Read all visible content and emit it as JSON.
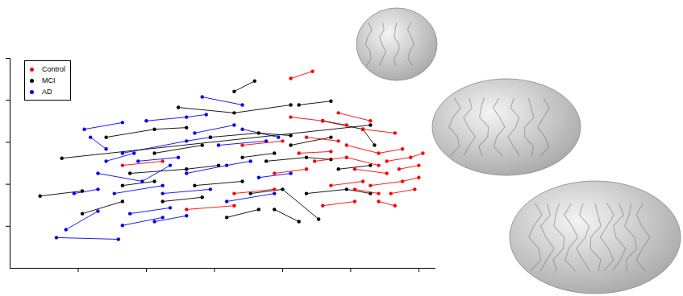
{
  "chart_data": {
    "type": "scatter",
    "tick_labels": false,
    "legend": "upper left",
    "xlim": [
      0,
      6.25
    ],
    "xticks": [
      1,
      2,
      3,
      4,
      5,
      6
    ],
    "ylim": [
      0,
      5
    ],
    "yticks": [
      1,
      2,
      3,
      4,
      5
    ],
    "series": [
      {
        "name": "AD",
        "color": "#0000ff",
        "marker": "circle",
        "line_style": "solid",
        "values": [
          [
            [
              0.68,
              0.73
            ],
            [
              1.59,
              0.69
            ]
          ],
          [
            [
              0.82,
              0.92
            ],
            [
              1.29,
              1.36
            ]
          ],
          [
            [
              1.09,
              3.31
            ],
            [
              1.65,
              3.47
            ]
          ],
          [
            [
              1.18,
              3.12
            ],
            [
              1.41,
              2.84
            ]
          ],
          [
            [
              1.29,
              2.26
            ],
            [
              1.94,
              2.07
            ],
            [
              2.35,
              2.45
            ]
          ],
          [
            [
              1.53,
              1.78
            ],
            [
              2.24,
              1.97
            ]
          ],
          [
            [
              1.65,
              2.74
            ],
            [
              2.59,
              3.03
            ],
            [
              2.94,
              3.12
            ]
          ],
          [
            [
              1.76,
              1.3
            ],
            [
              2.35,
              1.44
            ]
          ],
          [
            [
              1.88,
              2.55
            ],
            [
              2.47,
              2.64
            ]
          ],
          [
            [
              2.0,
              3.51
            ],
            [
              2.59,
              3.6
            ],
            [
              2.88,
              3.66
            ]
          ],
          [
            [
              2.24,
              1.78
            ],
            [
              2.94,
              1.88
            ]
          ],
          [
            [
              2.82,
              4.08
            ],
            [
              3.41,
              3.89
            ]
          ],
          [
            [
              2.59,
              2.26
            ],
            [
              3.18,
              2.45
            ],
            [
              3.53,
              2.55
            ]
          ],
          [
            [
              3.06,
              2.93
            ],
            [
              3.76,
              3.03
            ]
          ],
          [
            [
              3.18,
              1.59
            ],
            [
              3.88,
              1.78
            ]
          ],
          [
            [
              3.41,
              3.31
            ],
            [
              3.94,
              3.12
            ]
          ],
          [
            [
              0.94,
              1.78
            ],
            [
              1.29,
              1.88
            ]
          ],
          [
            [
              1.41,
              2.55
            ],
            [
              1.82,
              2.74
            ]
          ],
          [
            [
              2.12,
              1.11
            ],
            [
              2.59,
              1.25
            ]
          ],
          [
            [
              3.65,
              2.16
            ],
            [
              4.12,
              2.26
            ]
          ],
          [
            [
              1.65,
              1.02
            ],
            [
              2.24,
              1.21
            ]
          ],
          [
            [
              2.71,
              3.22
            ],
            [
              3.29,
              3.41
            ]
          ]
        ]
      },
      {
        "name": "MCI",
        "color": "#000000",
        "marker": "circle",
        "line_style": "solid",
        "values": [
          [
            [
              0.44,
              1.72
            ],
            [
              1.06,
              1.84
            ]
          ],
          [
            [
              0.76,
              2.62
            ],
            [
              5.29,
              3.41
            ]
          ],
          [
            [
              3.29,
              4.21
            ],
            [
              3.59,
              4.46
            ]
          ],
          [
            [
              1.41,
              3.12
            ],
            [
              2.12,
              3.31
            ],
            [
              2.59,
              3.35
            ]
          ],
          [
            [
              1.06,
              1.3
            ],
            [
              1.65,
              1.59
            ]
          ],
          [
            [
              1.76,
              2.26
            ],
            [
              2.59,
              2.36
            ],
            [
              3.06,
              2.45
            ]
          ],
          [
            [
              2.12,
              2.74
            ],
            [
              2.82,
              2.93
            ]
          ],
          [
            [
              2.47,
              3.83
            ],
            [
              3.29,
              3.7
            ],
            [
              4.12,
              3.89
            ]
          ],
          [
            [
              2.71,
              1.97
            ],
            [
              3.41,
              2.07
            ]
          ],
          [
            [
              2.94,
              3.12
            ],
            [
              3.65,
              3.22
            ],
            [
              4.12,
              3.16
            ]
          ],
          [
            [
              3.18,
              1.21
            ],
            [
              3.65,
              1.4
            ]
          ],
          [
            [
              3.76,
              2.55
            ],
            [
              4.35,
              2.64
            ],
            [
              4.71,
              2.59
            ]
          ],
          [
            [
              3.88,
              1.4
            ],
            [
              4.24,
              1.11
            ]
          ],
          [
            [
              4.12,
              2.93
            ],
            [
              4.71,
              3.12
            ]
          ],
          [
            [
              4.35,
              1.78
            ],
            [
              4.94,
              1.88
            ],
            [
              5.29,
              1.78
            ]
          ],
          [
            [
              4.59,
              3.51
            ],
            [
              5.18,
              3.31
            ],
            [
              5.35,
              2.93
            ]
          ],
          [
            [
              4.82,
              2.36
            ],
            [
              5.29,
              2.45
            ]
          ],
          [
            [
              3.41,
              2.64
            ],
            [
              3.88,
              2.74
            ]
          ],
          [
            [
              2.24,
              1.59
            ],
            [
              2.82,
              1.69
            ]
          ],
          [
            [
              3.53,
              1.78
            ],
            [
              4.0,
              1.88
            ],
            [
              4.53,
              1.17
            ]
          ],
          [
            [
              1.65,
              1.97
            ],
            [
              2.12,
              2.07
            ]
          ],
          [
            [
              4.24,
              3.89
            ],
            [
              4.71,
              3.98
            ]
          ]
        ]
      },
      {
        "name": "Control",
        "color": "#ff0000",
        "marker": "circle",
        "line_style": "solid",
        "values": [
          [
            [
              4.12,
              4.52
            ],
            [
              4.44,
              4.69
            ]
          ],
          [
            [
              1.65,
              2.45
            ],
            [
              2.24,
              2.55
            ]
          ],
          [
            [
              3.29,
              1.78
            ],
            [
              3.88,
              1.88
            ]
          ],
          [
            [
              4.12,
              3.6
            ],
            [
              4.59,
              3.51
            ],
            [
              4.94,
              3.41
            ]
          ],
          [
            [
              4.35,
              3.12
            ],
            [
              4.82,
              3.03
            ]
          ],
          [
            [
              4.47,
              2.55
            ],
            [
              4.94,
              2.64
            ],
            [
              5.41,
              2.45
            ]
          ],
          [
            [
              4.71,
              1.97
            ],
            [
              5.18,
              2.07
            ]
          ],
          [
            [
              4.94,
              2.93
            ],
            [
              5.41,
              2.74
            ],
            [
              5.76,
              2.84
            ]
          ],
          [
            [
              5.06,
              2.36
            ],
            [
              5.53,
              2.26
            ]
          ],
          [
            [
              5.18,
              3.31
            ],
            [
              5.65,
              3.22
            ]
          ],
          [
            [
              5.29,
              1.97
            ],
            [
              5.76,
              2.07
            ],
            [
              6.0,
              2.16
            ]
          ],
          [
            [
              5.41,
              1.59
            ],
            [
              5.65,
              1.49
            ]
          ],
          [
            [
              5.53,
              2.55
            ],
            [
              5.88,
              2.64
            ],
            [
              6.06,
              2.74
            ]
          ],
          [
            [
              5.59,
              1.78
            ],
            [
              5.94,
              1.88
            ]
          ],
          [
            [
              3.41,
              2.93
            ],
            [
              4.0,
              3.03
            ]
          ],
          [
            [
              3.88,
              2.26
            ],
            [
              4.35,
              2.36
            ]
          ],
          [
            [
              4.59,
              1.49
            ],
            [
              5.06,
              1.59
            ]
          ],
          [
            [
              4.82,
              3.7
            ],
            [
              5.29,
              3.51
            ]
          ],
          [
            [
              5.71,
              2.36
            ],
            [
              6.0,
              2.45
            ]
          ],
          [
            [
              4.24,
              2.74
            ],
            [
              4.71,
              2.78
            ]
          ],
          [
            [
              2.59,
              1.4
            ],
            [
              3.29,
              1.49
            ]
          ],
          [
            [
              5.06,
              1.88
            ],
            [
              5.41,
              1.78
            ]
          ]
        ]
      }
    ]
  }
}
